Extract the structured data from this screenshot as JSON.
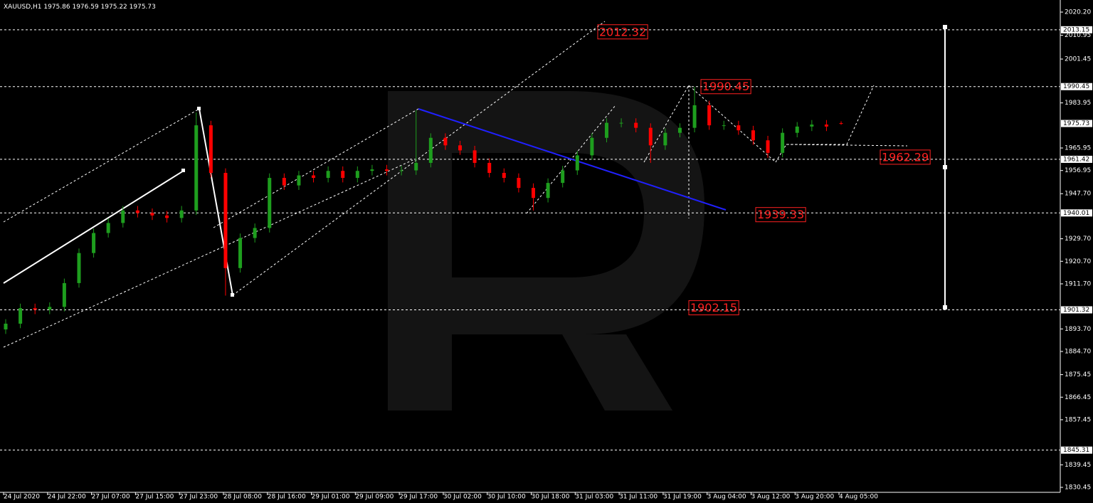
{
  "chart_data": {
    "type": "candlestick",
    "symbol": "XAUUSD,H1",
    "up_color": "#1e9e1e",
    "down_color": "#ff0000",
    "open": [
      1893.5,
      1895.8,
      1902,
      1901.4,
      1902.5,
      1912,
      1924,
      1932,
      1936,
      1941,
      1940,
      1939,
      1938,
      1941,
      1975,
      1956,
      1918,
      1930,
      1934,
      1954,
      1951,
      1955,
      1954,
      1956.8,
      1954,
      1956.8,
      1957.4,
      1956.8,
      1957,
      1960,
      1970,
      1967,
      1965,
      1960,
      1956,
      1954,
      1950,
      1946,
      1952,
      1957,
      1963,
      1970,
      1976,
      1976,
      1974,
      1967,
      1972,
      1974,
      1983,
      1975,
      1975,
      1973,
      1969,
      1964,
      1972,
      1974.5,
      1975.3,
      1975.86
    ],
    "high": [
      1897.6,
      1903.8,
      1903.8,
      1904.3,
      1913.8,
      1925.8,
      1933.8,
      1937.8,
      1942.8,
      1942.8,
      1941.8,
      1940.8,
      1942.8,
      1980.1,
      1976.8,
      1957.8,
      1931.8,
      1935.8,
      1955.8,
      1955.8,
      1956.8,
      1956.8,
      1958.6,
      1958.6,
      1958.6,
      1959.2,
      1959.2,
      1958.8,
      1981,
      1971.8,
      1971.8,
      1968.8,
      1966.8,
      1961.8,
      1957.8,
      1955.8,
      1951.8,
      1953.8,
      1958.8,
      1964.8,
      1971.8,
      1977.8,
      1977.8,
      1977.8,
      1975.8,
      1973.8,
      1975.8,
      1990.4,
      1984.8,
      1976.8,
      1976.8,
      1974.8,
      1970.8,
      1973.8,
      1976.3,
      1977.1,
      1977.1,
      1976.59
    ],
    "low": [
      1891.7,
      1894,
      1899.6,
      1899.6,
      1900.7,
      1910.2,
      1922.2,
      1930.2,
      1934.2,
      1938.2,
      1937.2,
      1936.2,
      1936.2,
      1939.2,
      1954.2,
      1907,
      1916.2,
      1928.2,
      1932.2,
      1949.2,
      1949.2,
      1952.2,
      1952.2,
      1952.2,
      1952.2,
      1955,
      1955,
      1955,
      1955.2,
      1958.2,
      1965.2,
      1963.2,
      1958.2,
      1954.2,
      1952.2,
      1948.2,
      1941,
      1944.2,
      1950.2,
      1955.2,
      1961.2,
      1968.2,
      1974.2,
      1972.2,
      1960,
      1965.2,
      1970.2,
      1972.2,
      1973.2,
      1973.2,
      1971.2,
      1967.2,
      1962,
      1962.2,
      1970.2,
      1972.7,
      1972.7,
      1975.22
    ],
    "close": [
      1895.8,
      1902,
      1901.4,
      1902.5,
      1912,
      1924,
      1932,
      1936,
      1941,
      1940,
      1939,
      1938,
      1941,
      1975,
      1956,
      1918,
      1930,
      1934,
      1954,
      1951,
      1955,
      1954,
      1956.8,
      1954,
      1956.8,
      1957.4,
      1956.8,
      1957,
      1960,
      1970,
      1967,
      1965,
      1960,
      1956,
      1954,
      1950,
      1946,
      1952,
      1957,
      1963,
      1970,
      1976,
      1976,
      1974,
      1967,
      1972,
      1974,
      1983,
      1975,
      1975,
      1973,
      1969,
      1964,
      1972,
      1974.5,
      1975.3,
      1974.5,
      1975.73
    ],
    "xlim": [
      0,
      72
    ],
    "xticks": [
      {
        "value": 0,
        "label": "24 Jul 2020"
      },
      {
        "value": 3,
        "label": "24 Jul 22:00"
      },
      {
        "value": 6,
        "label": "27 Jul 07:00"
      },
      {
        "value": 9,
        "label": "27 Jul 15:00"
      },
      {
        "value": 12,
        "label": "27 Jul 23:00"
      },
      {
        "value": 15,
        "label": "28 Jul 08:00"
      },
      {
        "value": 18,
        "label": "28 Jul 16:00"
      },
      {
        "value": 21,
        "label": "29 Jul 01:00"
      },
      {
        "value": 24,
        "label": "29 Jul 09:00"
      },
      {
        "value": 27,
        "label": "29 Jul 17:00"
      },
      {
        "value": 30,
        "label": "30 Jul 02:00"
      },
      {
        "value": 33,
        "label": "30 Jul 10:00"
      },
      {
        "value": 36,
        "label": "30 Jul 18:00"
      },
      {
        "value": 39,
        "label": "31 Jul 03:00"
      },
      {
        "value": 42,
        "label": "31 Jul 11:00"
      },
      {
        "value": 45,
        "label": "31 Jul 19:00"
      },
      {
        "value": 48,
        "label": "3 Aug 04:00"
      },
      {
        "value": 51,
        "label": "3 Aug 12:00"
      },
      {
        "value": 54,
        "label": "3 Aug 20:00"
      },
      {
        "value": 57,
        "label": "4 Aug 05:00"
      }
    ],
    "ylim": [
      1828.46,
      2024.18
    ],
    "yticks": [
      {
        "value": 2020.2,
        "label": "2020.20"
      },
      2010.95,
      2001.45,
      1983.95,
      1965.95,
      1956.95,
      {
        "value": 1947.7,
        "label": "1947.70"
      },
      {
        "value": 1929.7,
        "label": "1929.70"
      },
      {
        "value": 1920.7,
        "label": "1920.70"
      },
      {
        "value": 1911.7,
        "label": "1911.70"
      },
      {
        "value": 1893.7,
        "label": "1893.70"
      },
      {
        "value": 1884.7,
        "label": "1884.70"
      },
      1875.45,
      1866.45,
      1857.45,
      1839.45,
      1830.45
    ],
    "levels": [
      2013.15,
      1990.45,
      1961.42,
      1940.01,
      1901.32,
      1845.31
    ],
    "current_price": 1975.73,
    "annotations": [
      2012.32,
      1990.45,
      1962.29,
      1939.33,
      1902.15
    ],
    "annotation_color": "#ff2020"
  }
}
